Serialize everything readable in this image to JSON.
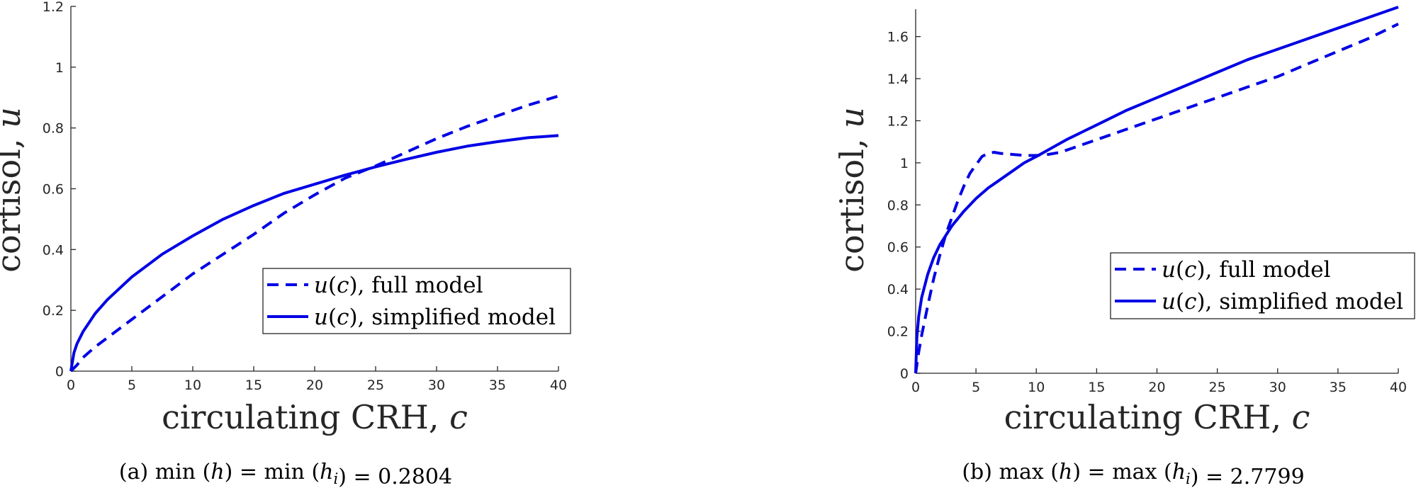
{
  "chart_data": [
    {
      "type": "line",
      "xlabel": "circulating CRH, c",
      "ylabel": "cortisol, u",
      "xlim": [
        0,
        40
      ],
      "ylim": [
        0,
        1.2
      ],
      "x_ticks": [
        "0",
        "5",
        "10",
        "15",
        "20",
        "25",
        "30",
        "35",
        "40"
      ],
      "y_ticks": [
        "0",
        "0.2",
        "0.4",
        "0.6",
        "0.8",
        "1",
        "1.2"
      ],
      "grid": false,
      "legend_position": "lower-right",
      "caption": "(a)  min (h) = min (h_i) = 0.2804",
      "series": [
        {
          "name": "u(c), full model",
          "style": "dashed",
          "color": "#0000e6",
          "points": [
            [
              0,
              0
            ],
            [
              0.5,
              0.02
            ],
            [
              1,
              0.045
            ],
            [
              2,
              0.08
            ],
            [
              3,
              0.11
            ],
            [
              5,
              0.17
            ],
            [
              7.5,
              0.245
            ],
            [
              10,
              0.32
            ],
            [
              12.5,
              0.385
            ],
            [
              15,
              0.45
            ],
            [
              17.5,
              0.52
            ],
            [
              20,
              0.58
            ],
            [
              22.5,
              0.635
            ],
            [
              25,
              0.675
            ],
            [
              27.5,
              0.72
            ],
            [
              30,
              0.765
            ],
            [
              32.5,
              0.805
            ],
            [
              35,
              0.84
            ],
            [
              37.5,
              0.875
            ],
            [
              40,
              0.905
            ]
          ]
        },
        {
          "name": "u(c), simplified model",
          "style": "solid",
          "color": "#0000e6",
          "points": [
            [
              0,
              0
            ],
            [
              0.25,
              0.06
            ],
            [
              0.5,
              0.09
            ],
            [
              1,
              0.13
            ],
            [
              2,
              0.19
            ],
            [
              3,
              0.235
            ],
            [
              5,
              0.31
            ],
            [
              7.5,
              0.385
            ],
            [
              10,
              0.445
            ],
            [
              12.5,
              0.5
            ],
            [
              15,
              0.545
            ],
            [
              17.5,
              0.585
            ],
            [
              20,
              0.615
            ],
            [
              22.5,
              0.645
            ],
            [
              25,
              0.672
            ],
            [
              27.5,
              0.697
            ],
            [
              30,
              0.72
            ],
            [
              32.5,
              0.74
            ],
            [
              35,
              0.755
            ],
            [
              37.5,
              0.768
            ],
            [
              40,
              0.775
            ]
          ]
        }
      ]
    },
    {
      "type": "line",
      "xlabel": "circulating CRH, c",
      "ylabel": "cortisol, u",
      "xlim": [
        0,
        40
      ],
      "ylim": [
        0,
        1.73
      ],
      "x_ticks": [
        "0",
        "5",
        "10",
        "15",
        "20",
        "25",
        "30",
        "35",
        "40"
      ],
      "y_ticks": [
        "0",
        "0.2",
        "0.4",
        "0.6",
        "0.8",
        "1",
        "1.2",
        "1.4",
        "1.6"
      ],
      "grid": false,
      "legend_position": "lower-right",
      "caption": "(b)  max (h) = max (h_i) = 2.7799",
      "series": [
        {
          "name": "u(c), full model",
          "style": "dashed",
          "color": "#0000e6",
          "points": [
            [
              0,
              0
            ],
            [
              0.25,
              0.1
            ],
            [
              0.5,
              0.18
            ],
            [
              1,
              0.32
            ],
            [
              1.5,
              0.45
            ],
            [
              2,
              0.56
            ],
            [
              2.5,
              0.66
            ],
            [
              3,
              0.74
            ],
            [
              3.5,
              0.82
            ],
            [
              4,
              0.89
            ],
            [
              4.5,
              0.95
            ],
            [
              5,
              0.99
            ],
            [
              5.5,
              1.03
            ],
            [
              6,
              1.045
            ],
            [
              6.5,
              1.05
            ],
            [
              7,
              1.045
            ],
            [
              8,
              1.04
            ],
            [
              9,
              1.035
            ],
            [
              10,
              1.035
            ],
            [
              11,
              1.04
            ],
            [
              12,
              1.05
            ],
            [
              13,
              1.07
            ],
            [
              15,
              1.11
            ],
            [
              17.5,
              1.16
            ],
            [
              20,
              1.21
            ],
            [
              22.5,
              1.26
            ],
            [
              25,
              1.31
            ],
            [
              27.5,
              1.36
            ],
            [
              30,
              1.41
            ],
            [
              32.5,
              1.47
            ],
            [
              35,
              1.53
            ],
            [
              37.5,
              1.59
            ],
            [
              40,
              1.66
            ]
          ]
        },
        {
          "name": "u(c), simplified model",
          "style": "solid",
          "color": "#0000e6",
          "points": [
            [
              0,
              0
            ],
            [
              0.1,
              0.17
            ],
            [
              0.25,
              0.27
            ],
            [
              0.5,
              0.36
            ],
            [
              1,
              0.47
            ],
            [
              1.5,
              0.55
            ],
            [
              2,
              0.61
            ],
            [
              3,
              0.7
            ],
            [
              4,
              0.77
            ],
            [
              5,
              0.83
            ],
            [
              6,
              0.88
            ],
            [
              7,
              0.92
            ],
            [
              8,
              0.96
            ],
            [
              9,
              1.0
            ],
            [
              10,
              1.03
            ],
            [
              12.5,
              1.11
            ],
            [
              15,
              1.18
            ],
            [
              17.5,
              1.25
            ],
            [
              20,
              1.31
            ],
            [
              22.5,
              1.37
            ],
            [
              25,
              1.43
            ],
            [
              27.5,
              1.49
            ],
            [
              30,
              1.54
            ],
            [
              32.5,
              1.59
            ],
            [
              35,
              1.64
            ],
            [
              37.5,
              1.69
            ],
            [
              40,
              1.74
            ]
          ]
        }
      ]
    }
  ]
}
